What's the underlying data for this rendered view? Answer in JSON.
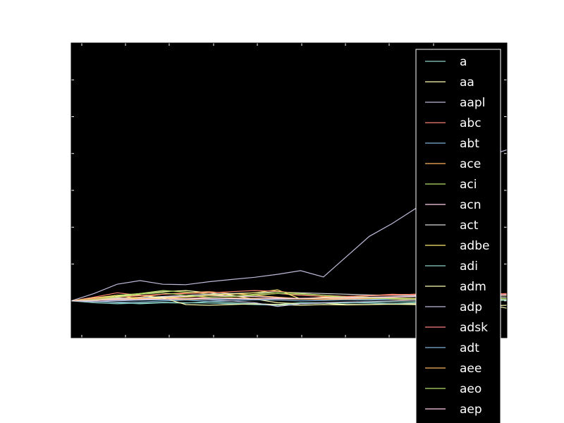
{
  "chart_data": {
    "type": "line",
    "title": "",
    "xlabel": "",
    "ylabel": "",
    "grid": false,
    "legend_placement": "right",
    "x": [
      0,
      1,
      2,
      3,
      4,
      5,
      6,
      7,
      8,
      9,
      10,
      11,
      12,
      13,
      14,
      15,
      16,
      17,
      18,
      19
    ],
    "xlim": [
      0,
      19
    ],
    "ylim": [
      -1.0,
      7.0
    ],
    "series": [
      {
        "name": "a",
        "color": "#8dd3c7",
        "values": [
          0,
          0.0,
          -0.05,
          -0.08,
          -0.05,
          -0.06,
          -0.02,
          -0.05,
          -0.08,
          -0.1,
          -0.05,
          -0.05,
          -0.06,
          -0.04,
          -0.03,
          -0.02,
          0.0,
          0.0,
          -0.02,
          0.02
        ]
      },
      {
        "name": "aa",
        "color": "#ffffb3",
        "values": [
          0,
          0.05,
          0.12,
          0.2,
          0.25,
          0.28,
          0.22,
          0.15,
          0.05,
          -0.05,
          -0.08,
          -0.06,
          -0.1,
          -0.1,
          -0.08,
          -0.08,
          -0.1,
          -0.12,
          -0.14,
          -0.12
        ]
      },
      {
        "name": "aapl",
        "color": "#bebada",
        "values": [
          0,
          0.2,
          0.45,
          0.55,
          0.45,
          0.44,
          0.52,
          0.58,
          0.64,
          0.72,
          0.82,
          0.65,
          1.2,
          1.75,
          2.1,
          2.5,
          3.0,
          3.5,
          3.9,
          4.1
        ]
      },
      {
        "name": "abc",
        "color": "#fb8072",
        "values": [
          0,
          0.1,
          0.22,
          0.15,
          0.08,
          0.06,
          0.1,
          0.12,
          0.16,
          0.2,
          0.15,
          0.12,
          0.1,
          0.14,
          0.18,
          0.16,
          0.2,
          0.22,
          0.18,
          0.2
        ]
      },
      {
        "name": "abt",
        "color": "#80b1d3",
        "values": [
          0,
          -0.02,
          -0.04,
          -0.03,
          0.0,
          0.02,
          -0.01,
          0.0,
          0.03,
          0.02,
          0.0,
          0.01,
          0.03,
          0.02,
          0.04,
          0.02,
          0.0,
          0.03,
          0.05,
          0.02
        ]
      },
      {
        "name": "ace",
        "color": "#fdb462",
        "values": [
          0,
          0.03,
          0.06,
          0.1,
          0.18,
          0.22,
          0.25,
          0.2,
          0.15,
          0.1,
          0.06,
          0.05,
          0.08,
          0.07,
          0.04,
          0.02,
          0.05,
          0.06,
          0.04,
          0.05
        ]
      },
      {
        "name": "aci",
        "color": "#b3de69",
        "values": [
          0,
          0.05,
          0.15,
          0.2,
          0.28,
          0.24,
          0.18,
          0.12,
          0.15,
          0.2,
          0.18,
          0.15,
          0.12,
          0.1,
          0.08,
          0.07,
          0.06,
          0.05,
          0.04,
          0.03
        ]
      },
      {
        "name": "acn",
        "color": "#fccde5",
        "values": [
          0,
          0.04,
          0.08,
          0.06,
          0.1,
          0.12,
          0.15,
          0.13,
          0.12,
          0.08,
          0.05,
          0.04,
          0.06,
          0.08,
          0.1,
          0.12,
          0.15,
          0.18,
          0.14,
          0.16
        ]
      },
      {
        "name": "act",
        "color": "#d9d9d9",
        "values": [
          0,
          0.02,
          0.05,
          0.08,
          0.12,
          0.15,
          0.18,
          0.2,
          0.22,
          0.24,
          0.22,
          0.2,
          0.18,
          0.16,
          0.15,
          0.14,
          0.13,
          0.12,
          0.11,
          0.1
        ]
      },
      {
        "name": "adbe",
        "color": "#ffed6f",
        "values": [
          0,
          0.08,
          0.15,
          0.05,
          0.08,
          0.1,
          0.15,
          0.18,
          0.22,
          0.3,
          0.05,
          0.1,
          0.12,
          0.14,
          0.16,
          0.18,
          0.2,
          0.18,
          0.16,
          0.15
        ]
      },
      {
        "name": "adi",
        "color": "#8dd3c7",
        "values": [
          0,
          -0.05,
          -0.08,
          -0.06,
          -0.04,
          -0.05,
          -0.06,
          -0.08,
          -0.1,
          -0.12,
          -0.08,
          -0.06,
          -0.05,
          -0.06,
          -0.08,
          -0.05,
          -0.03,
          -0.02,
          0.0,
          0.02
        ]
      },
      {
        "name": "adm",
        "color": "#ffffb3",
        "values": [
          0,
          0.05,
          0.1,
          0.15,
          0.08,
          -0.1,
          -0.12,
          -0.1,
          -0.08,
          -0.1,
          -0.12,
          -0.1,
          -0.11,
          -0.1,
          -0.09,
          -0.1,
          -0.09,
          -0.1,
          -0.08,
          -0.2
        ]
      },
      {
        "name": "adp",
        "color": "#bebada",
        "values": [
          0,
          -0.02,
          0.0,
          0.02,
          0.04,
          0.05,
          0.03,
          0.0,
          -0.05,
          -0.15,
          -0.08,
          -0.05,
          -0.03,
          -0.02,
          0.0,
          0.02,
          0.03,
          0.04,
          0.05,
          0.06
        ]
      },
      {
        "name": "adsk",
        "color": "#fb8072",
        "values": [
          0,
          0.06,
          0.1,
          0.14,
          0.18,
          0.2,
          0.22,
          0.25,
          0.28,
          0.26,
          0.2,
          0.15,
          0.12,
          0.14,
          0.16,
          0.18,
          0.2,
          0.22,
          0.2,
          0.18
        ]
      },
      {
        "name": "adt",
        "color": "#80b1d3",
        "values": [
          0,
          0.01,
          0.02,
          0.02,
          0.03,
          0.03,
          0.04,
          0.04,
          0.05,
          0.05,
          0.04,
          0.04,
          0.03,
          0.04,
          0.05,
          0.05,
          0.06,
          0.06,
          0.05,
          0.05
        ]
      },
      {
        "name": "aee",
        "color": "#fdb462",
        "values": [
          0,
          0.02,
          0.04,
          0.06,
          0.05,
          0.04,
          0.06,
          0.08,
          0.07,
          0.06,
          0.05,
          0.04,
          0.05,
          0.06,
          0.07,
          0.06,
          0.05,
          0.06,
          0.07,
          0.06
        ]
      },
      {
        "name": "aeo",
        "color": "#b3de69",
        "values": [
          0,
          0.04,
          0.1,
          0.18,
          0.22,
          0.15,
          0.1,
          0.12,
          0.18,
          0.24,
          0.2,
          0.15,
          0.1,
          0.08,
          0.06,
          0.05,
          0.08,
          0.1,
          0.08,
          0.06
        ]
      },
      {
        "name": "aep",
        "color": "#fccde5",
        "values": [
          0,
          0.01,
          0.03,
          0.04,
          0.05,
          0.06,
          0.07,
          0.06,
          0.05,
          0.06,
          0.07,
          0.08,
          0.09,
          0.1,
          0.11,
          0.12,
          0.13,
          0.14,
          0.15,
          0.16
        ]
      }
    ]
  }
}
